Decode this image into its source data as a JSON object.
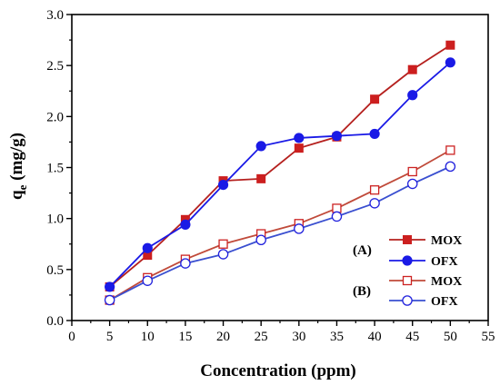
{
  "chart_data": {
    "type": "line",
    "xlabel": "Concentration (ppm)",
    "ylabel_main": "q",
    "ylabel_sub": "e",
    "ylabel_unit": " (mg/g)",
    "xlim": [
      0,
      55
    ],
    "ylim": [
      0.0,
      3.0
    ],
    "x_ticks": [
      "0",
      "5",
      "10",
      "15",
      "20",
      "25",
      "30",
      "35",
      "40",
      "45",
      "50",
      "55"
    ],
    "y_ticks": [
      "0.0",
      "0.5",
      "1.0",
      "1.5",
      "2.0",
      "2.5",
      "3.0"
    ],
    "x": [
      5,
      10,
      15,
      20,
      25,
      30,
      35,
      40,
      45,
      50
    ],
    "grid": false,
    "legend_position": "bottom-right",
    "group_labels": [
      {
        "label": "(A)"
      },
      {
        "label": "(B)"
      }
    ],
    "series": [
      {
        "name": "MOX",
        "group": "(A)",
        "color": "#cc1f1f",
        "line_color": "#b5201e",
        "marker": "filled-square",
        "values": [
          0.33,
          0.64,
          0.99,
          1.37,
          1.39,
          1.69,
          1.8,
          2.17,
          2.46,
          2.7
        ]
      },
      {
        "name": "OFX",
        "group": "(A)",
        "color": "#1a1ae6",
        "line_color": "#1a1ae6",
        "marker": "filled-circle",
        "values": [
          0.33,
          0.71,
          0.94,
          1.33,
          1.71,
          1.79,
          1.81,
          1.83,
          2.21,
          2.53
        ]
      },
      {
        "name": "MOX",
        "group": "(B)",
        "color": "#cc2222",
        "line_color": "#c04a3a",
        "marker": "open-square",
        "values": [
          0.2,
          0.42,
          0.6,
          0.75,
          0.85,
          0.95,
          1.1,
          1.28,
          1.46,
          1.67
        ]
      },
      {
        "name": "OFX",
        "group": "(B)",
        "color": "#2222dd",
        "line_color": "#3a4fd0",
        "marker": "open-circle",
        "values": [
          0.2,
          0.39,
          0.56,
          0.65,
          0.79,
          0.9,
          1.02,
          1.15,
          1.34,
          1.51
        ]
      }
    ]
  }
}
